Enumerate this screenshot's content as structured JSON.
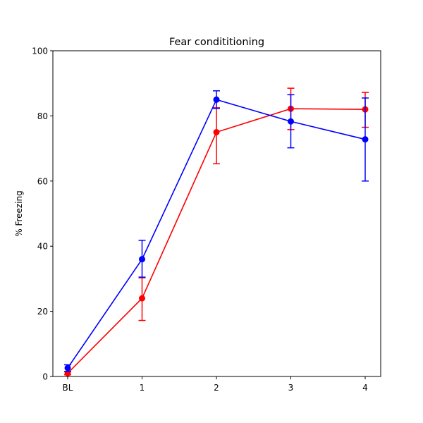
{
  "chart_data": {
    "type": "line",
    "title": "Fear condititioning",
    "xlabel": "",
    "ylabel": "% Freezing",
    "categories": [
      "BL",
      "1",
      "2",
      "3",
      "4"
    ],
    "ylim": [
      0,
      100
    ],
    "yticks": [
      0,
      20,
      40,
      60,
      80,
      100
    ],
    "grid": false,
    "series": [
      {
        "color": "#ff0000",
        "values": [
          1.0,
          24.0,
          75.0,
          82.2,
          82.0
        ],
        "err_low": [
          0.5,
          17.2,
          65.3,
          75.8,
          76.5
        ],
        "err_high": [
          1.5,
          30.3,
          82.5,
          88.5,
          87.2
        ]
      },
      {
        "color": "#0000ff",
        "values": [
          2.6,
          36.0,
          85.0,
          78.3,
          72.8
        ],
        "err_low": [
          1.5,
          30.5,
          82.3,
          70.2,
          60.0
        ],
        "err_high": [
          3.6,
          41.8,
          87.7,
          86.5,
          85.5
        ]
      }
    ]
  }
}
